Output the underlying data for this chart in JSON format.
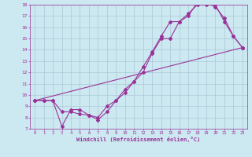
{
  "xlabel": "Windchill (Refroidissement éolien,°C)",
  "xlim": [
    -0.5,
    23.5
  ],
  "ylim": [
    7,
    18
  ],
  "xticks": [
    0,
    1,
    2,
    3,
    4,
    5,
    6,
    7,
    8,
    9,
    10,
    11,
    12,
    13,
    14,
    15,
    16,
    17,
    18,
    19,
    20,
    21,
    22,
    23
  ],
  "yticks": [
    7,
    8,
    9,
    10,
    11,
    12,
    13,
    14,
    15,
    16,
    17,
    18
  ],
  "bg_color": "#cce8f0",
  "grid_color": "#aac8d8",
  "line_color": "#993399",
  "line1_x": [
    0,
    1,
    2,
    3,
    4,
    5,
    6,
    7,
    8,
    9,
    10,
    11,
    12,
    13,
    14,
    15,
    16,
    17,
    18,
    19,
    20,
    21,
    22,
    23
  ],
  "line1_y": [
    9.5,
    9.5,
    9.5,
    8.5,
    8.5,
    8.3,
    8.2,
    7.8,
    8.5,
    9.5,
    10.5,
    11.2,
    12.0,
    13.7,
    15.0,
    15.0,
    16.5,
    17.2,
    18.0,
    18.0,
    18.0,
    16.5,
    15.2,
    14.2
  ],
  "line2_x": [
    0,
    1,
    2,
    3,
    4,
    5,
    6,
    7,
    8,
    9,
    10,
    11,
    12,
    13,
    14,
    15,
    16,
    17,
    18,
    19,
    20,
    21,
    22,
    23
  ],
  "line2_y": [
    9.5,
    9.5,
    9.5,
    7.2,
    8.7,
    8.7,
    8.2,
    8.0,
    9.0,
    9.5,
    10.2,
    11.2,
    12.5,
    13.8,
    15.2,
    16.5,
    16.5,
    17.0,
    18.2,
    18.2,
    17.8,
    16.8,
    15.2,
    14.2
  ],
  "line3_x": [
    0,
    23
  ],
  "line3_y": [
    9.5,
    14.2
  ]
}
